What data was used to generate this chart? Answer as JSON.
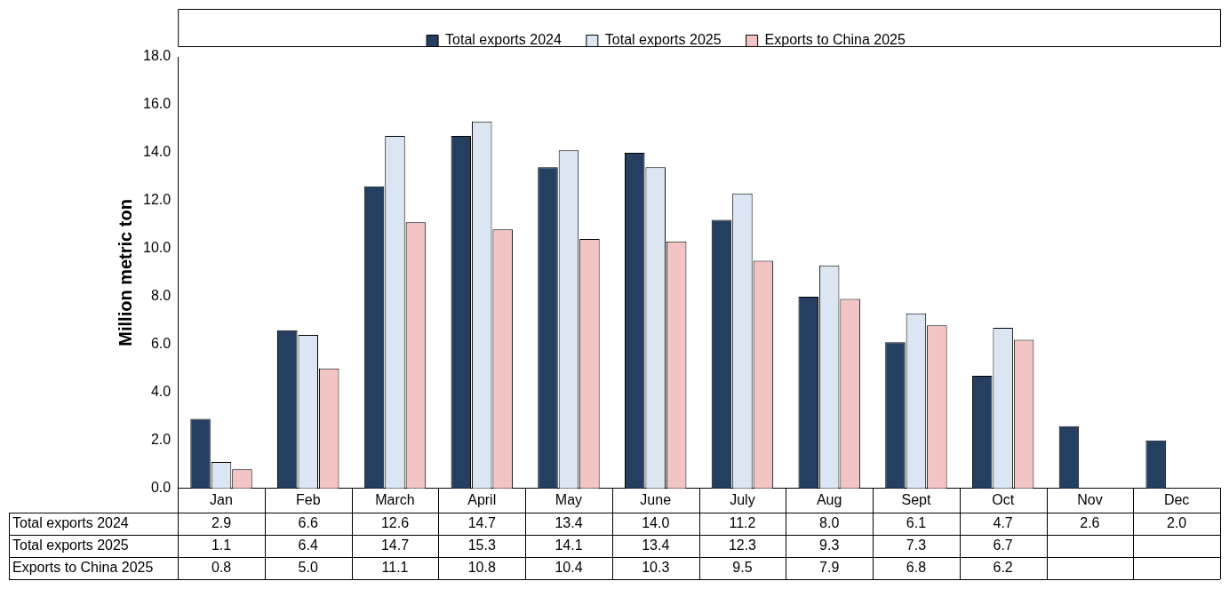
{
  "chart_data": {
    "type": "bar",
    "ylabel": "Million metric ton",
    "categories": [
      "Jan",
      "Feb",
      "March",
      "April",
      "May",
      "June",
      "July",
      "Aug",
      "Sept",
      "Oct",
      "Nov",
      "Dec"
    ],
    "series": [
      {
        "name": "Total exports 2024",
        "color": "#243f60",
        "values": [
          2.9,
          6.6,
          12.6,
          14.7,
          13.4,
          14.0,
          11.2,
          8.0,
          6.1,
          4.7,
          2.6,
          2.0
        ],
        "value_labels": [
          "2.9",
          "6.6",
          "12.6",
          "14.7",
          "13.4",
          "14.0",
          "11.2",
          "8.0",
          "6.1",
          "4.7",
          "2.6",
          "2.0"
        ]
      },
      {
        "name": "Total exports 2025",
        "color": "#dce6f2",
        "values": [
          1.1,
          6.4,
          14.7,
          15.3,
          14.1,
          13.4,
          12.3,
          9.3,
          7.3,
          6.7,
          null,
          null
        ],
        "value_labels": [
          "1.1",
          "6.4",
          "14.7",
          "15.3",
          "14.1",
          "13.4",
          "12.3",
          "9.3",
          "7.3",
          "6.7",
          null,
          null
        ]
      },
      {
        "name": "Exports to China 2025",
        "color": "#f3c4c4",
        "values": [
          0.8,
          5.0,
          11.1,
          10.8,
          10.4,
          10.3,
          9.5,
          7.9,
          6.8,
          6.2,
          null,
          null
        ],
        "value_labels": [
          "0.8",
          "5.0",
          "11.1",
          "10.8",
          "10.4",
          "10.3",
          "9.5",
          "7.9",
          "6.8",
          "6.2",
          null,
          null
        ]
      }
    ],
    "ylim": [
      0,
      18
    ],
    "yticks": [
      {
        "value": 0,
        "label": "0.0"
      },
      {
        "value": 2,
        "label": "2.0"
      },
      {
        "value": 4,
        "label": "4.0"
      },
      {
        "value": 6,
        "label": "6.0"
      },
      {
        "value": 8,
        "label": "8.0"
      },
      {
        "value": 10,
        "label": "10.0"
      },
      {
        "value": 12,
        "label": "12.0"
      },
      {
        "value": 14,
        "label": "14.0"
      },
      {
        "value": 16,
        "label": "16.0"
      },
      {
        "value": 18,
        "label": "18.0"
      }
    ],
    "grid": false,
    "legend": "top"
  }
}
